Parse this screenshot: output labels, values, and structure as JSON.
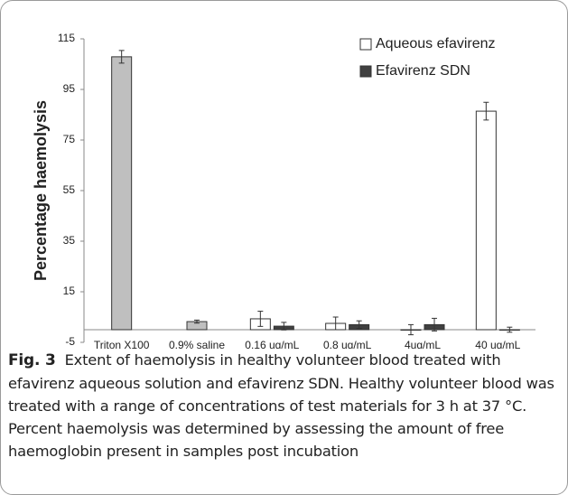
{
  "chart_data": {
    "type": "bar",
    "ylabel": "Percentage haemolysis",
    "categories": [
      "Triton X100",
      "0.9% saline solution",
      "0.16 ug/mL",
      "0.8 ug/mL",
      "4ug/mL",
      "40 ug/mL"
    ],
    "series": [
      {
        "color": "#bfbfbf",
        "values": [
          107.9,
          3.2,
          null,
          null,
          null,
          null
        ],
        "errors": [
          2.5,
          0.6,
          null,
          null,
          null,
          null
        ]
      },
      {
        "name": "Aqueous efavirenz",
        "color": "#ffffff",
        "values": [
          null,
          null,
          4.3,
          2.5,
          0,
          86.4
        ],
        "errors": [
          null,
          null,
          3,
          2.5,
          2,
          3.5
        ]
      },
      {
        "name": "Efavirenz SDN",
        "color": "#404040",
        "values": [
          null,
          null,
          1.4,
          2,
          2,
          0
        ],
        "errors": [
          null,
          null,
          1.5,
          1.5,
          2.5,
          1
        ]
      }
    ],
    "ylim": [
      -5,
      115
    ],
    "yticks": [
      -5,
      15,
      35,
      55,
      75,
      95,
      115
    ],
    "legend": "upper right"
  },
  "caption": {
    "label": "Fig. 3",
    "text": "Extent of haemolysis in healthy volunteer blood treated with efavirenz aqueous solution and efavirenz SDN. Healthy volunteer blood was treated with a range of concentrations of test materials for 3 h at 37 °C. Percent haemolysis was determined by assessing the amount of free haemoglobin present in samples post incubation"
  }
}
